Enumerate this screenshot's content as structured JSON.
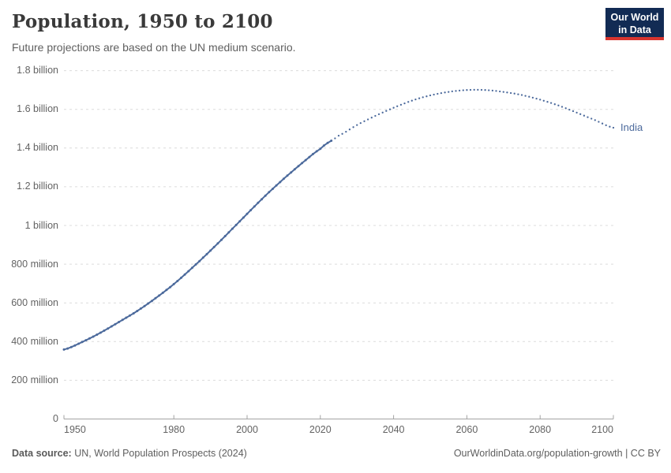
{
  "header": {
    "logo": {
      "line1": "Our World",
      "line2": "in Data"
    }
  },
  "chart_data": {
    "type": "line",
    "title": "Population, 1950 to 2100",
    "subtitle": "Future projections are based on the UN medium scenario.",
    "unit": "billions of people",
    "xlim": [
      1950,
      2100
    ],
    "ylim": [
      0,
      1.8
    ],
    "grid": "horizontal-dashed",
    "legend_position": "end-of-line-label",
    "x_ticks": [
      1950,
      1980,
      2000,
      2020,
      2040,
      2060,
      2080,
      2100
    ],
    "y_ticks": [
      {
        "value": 0,
        "label": "0"
      },
      {
        "value": 0.2,
        "label": "200 million"
      },
      {
        "value": 0.4,
        "label": "400 million"
      },
      {
        "value": 0.6,
        "label": "600 million"
      },
      {
        "value": 0.8,
        "label": "800 million"
      },
      {
        "value": 1,
        "label": "1 billion"
      },
      {
        "value": 1.2,
        "label": "1.2 billion"
      },
      {
        "value": 1.4,
        "label": "1.4 billion"
      },
      {
        "value": 1.6,
        "label": "1.6 billion"
      },
      {
        "value": 1.8,
        "label": "1.8 billion"
      }
    ],
    "series": [
      {
        "name": "India",
        "color": "#4c6a9c",
        "projection_start_year": 2023,
        "points": [
          [
            1950,
            0.359
          ],
          [
            1955,
            0.398
          ],
          [
            1960,
            0.446
          ],
          [
            1965,
            0.501
          ],
          [
            1970,
            0.558
          ],
          [
            1975,
            0.624
          ],
          [
            1980,
            0.697
          ],
          [
            1985,
            0.781
          ],
          [
            1990,
            0.87
          ],
          [
            1995,
            0.964
          ],
          [
            2000,
            1.06
          ],
          [
            2005,
            1.154
          ],
          [
            2010,
            1.241
          ],
          [
            2015,
            1.322
          ],
          [
            2020,
            1.396
          ],
          [
            2023,
            1.438
          ],
          [
            2025,
            1.464
          ],
          [
            2030,
            1.519
          ],
          [
            2035,
            1.566
          ],
          [
            2040,
            1.608
          ],
          [
            2045,
            1.645
          ],
          [
            2050,
            1.672
          ],
          [
            2055,
            1.69
          ],
          [
            2060,
            1.7
          ],
          [
            2065,
            1.7
          ],
          [
            2070,
            1.69
          ],
          [
            2075,
            1.674
          ],
          [
            2080,
            1.65
          ],
          [
            2085,
            1.62
          ],
          [
            2090,
            1.583
          ],
          [
            2095,
            1.544
          ],
          [
            2100,
            1.505
          ]
        ]
      }
    ],
    "colors": {
      "line": "#4c6a9c",
      "grid": "#dcdcdc",
      "axis": "#a3a3a3",
      "tick_text": "#636363"
    }
  },
  "footer": {
    "source_label": "Data source:",
    "source_text": " UN, World Population Prospects (2024)",
    "link_text": "OurWorldinData.org/population-growth | CC BY"
  }
}
